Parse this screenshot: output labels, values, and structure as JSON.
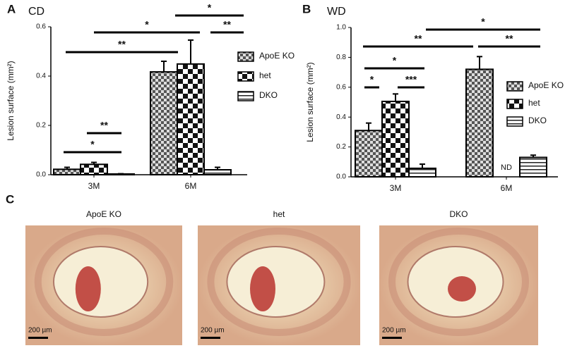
{
  "chart_data": [
    {
      "type": "bar",
      "panel": "A",
      "title": "CD",
      "y_label": "Lesion surface (mm²)",
      "categories": [
        "3M",
        "6M"
      ],
      "series": [
        {
          "name": "ApoE KO",
          "color": "#555555",
          "values": [
            0.022,
            0.417
          ],
          "errors": [
            0.008,
            0.043
          ]
        },
        {
          "name": "het",
          "color": "#111111",
          "values": [
            0.042,
            0.449
          ],
          "errors": [
            0.008,
            0.097
          ]
        },
        {
          "name": "DKO",
          "color": "#222222",
          "values": [
            0.003,
            0.02
          ],
          "errors": [
            0.001,
            0.01
          ]
        }
      ],
      "ylim": [
        0,
        0.6
      ],
      "yticks": [
        {
          "value": 0,
          "label": "0.0"
        },
        0.2,
        0.4,
        0.6
      ],
      "annotations": [
        "*",
        "**",
        "**",
        "*",
        "*",
        "**"
      ]
    },
    {
      "type": "bar",
      "panel": "B",
      "title": "WD",
      "y_label": "Lesion surface (mm²)",
      "categories": [
        "3M",
        "6M"
      ],
      "series": [
        {
          "name": "ApoE KO",
          "color": "#555555",
          "values": [
            0.31,
            0.72
          ],
          "errors": [
            0.05,
            0.085
          ]
        },
        {
          "name": "het",
          "color": "#111111",
          "values": [
            0.505,
            null
          ],
          "errors": [
            0.05,
            null
          ]
        },
        {
          "name": "DKO",
          "color": "#222222",
          "values": [
            0.057,
            0.13
          ],
          "errors": [
            0.028,
            0.015
          ]
        }
      ],
      "ylim": [
        0,
        1.0
      ],
      "yticks": [
        {
          "value": 0,
          "label": "0.0"
        },
        0.2,
        0.4,
        0.6,
        0.8,
        {
          "value": 1.0,
          "label": "1.0"
        }
      ],
      "annotations": [
        "*",
        "***",
        "*",
        "**",
        "*",
        "**",
        "ND"
      ]
    }
  ],
  "panel_c": {
    "label": "C",
    "images": [
      {
        "title": "ApoE KO",
        "scale_bar": "200 µm"
      },
      {
        "title": "het",
        "scale_bar": "200 µm"
      },
      {
        "title": "DKO",
        "scale_bar": "200 µm"
      }
    ]
  }
}
